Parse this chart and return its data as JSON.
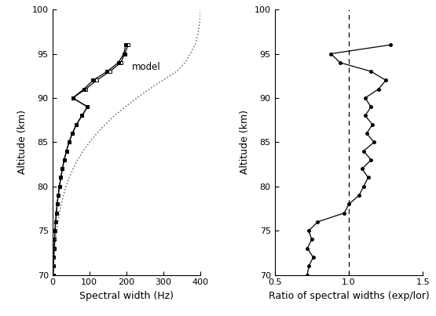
{
  "left_altitudes": [
    70,
    71,
    72,
    73,
    74,
    75,
    76,
    77,
    78,
    79,
    80,
    81,
    82,
    83,
    84,
    85,
    86,
    87,
    88,
    89,
    90,
    91,
    92,
    93,
    94,
    95,
    96
  ],
  "line1_widths": [
    2,
    3,
    4,
    5,
    6,
    7,
    9,
    11,
    13,
    16,
    19,
    23,
    27,
    32,
    38,
    45,
    54,
    65,
    80,
    95,
    55,
    90,
    120,
    155,
    185,
    195,
    205
  ],
  "line2_widths": [
    2,
    3,
    4,
    5,
    6,
    7,
    9,
    11,
    13,
    16,
    19,
    23,
    27,
    32,
    38,
    45,
    54,
    65,
    80,
    95,
    55,
    85,
    110,
    148,
    178,
    193,
    198
  ],
  "model_altitudes": [
    70,
    71,
    72,
    73,
    74,
    75,
    76,
    77,
    78,
    79,
    80,
    81,
    82,
    83,
    84,
    85,
    86,
    87,
    88,
    89,
    90,
    91,
    92,
    93,
    94,
    95,
    96,
    97,
    98,
    99,
    100
  ],
  "model_widths": [
    3,
    4,
    5,
    7,
    9,
    12,
    15,
    19,
    24,
    30,
    37,
    46,
    56,
    68,
    83,
    100,
    120,
    143,
    168,
    197,
    228,
    262,
    298,
    336,
    358,
    372,
    385,
    392,
    396,
    399,
    400
  ],
  "right_altitudes": [
    70,
    71,
    72,
    73,
    74,
    75,
    76,
    77,
    78,
    79,
    80,
    81,
    82,
    83,
    84,
    85,
    86,
    87,
    88,
    89,
    90,
    91,
    92,
    93,
    94,
    95,
    96
  ],
  "right_ratios": [
    0.72,
    0.73,
    0.76,
    0.72,
    0.75,
    0.73,
    0.79,
    0.97,
    1.0,
    1.07,
    1.1,
    1.13,
    1.09,
    1.15,
    1.1,
    1.17,
    1.12,
    1.16,
    1.11,
    1.15,
    1.11,
    1.2,
    1.25,
    1.15,
    0.94,
    0.88,
    1.28
  ],
  "alt_min": 70,
  "alt_max": 100,
  "sw_min": 0,
  "sw_max": 400,
  "ratio_min": 0.5,
  "ratio_max": 1.5,
  "model_label": "model",
  "xlabel_left": "Spectral width (Hz)",
  "ylabel": "Altitude (km)",
  "xlabel_right": "Ratio of spectral widths (exp/lor)",
  "line_color": "#000000",
  "model_color": "#666666"
}
